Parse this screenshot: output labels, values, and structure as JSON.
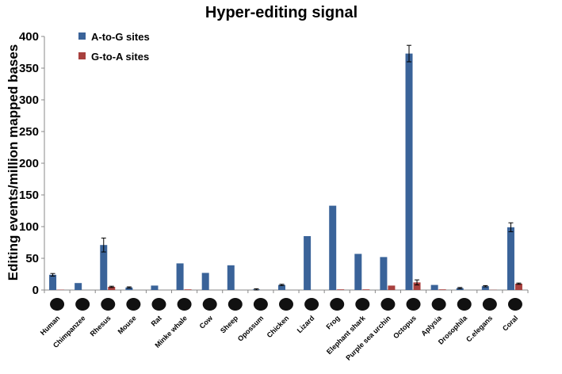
{
  "chart_data": {
    "type": "bar",
    "title": "Hyper-editing signal",
    "xlabel": "",
    "ylabel": "Editing events/million mapped bases",
    "ylim": [
      0,
      400
    ],
    "yticks": [
      0,
      50,
      100,
      150,
      200,
      250,
      300,
      350,
      400
    ],
    "grid": false,
    "legend_position": "top-left",
    "categories": [
      "Human",
      "Chimpanzee",
      "Rhesus",
      "Mouse",
      "Rat",
      "Minke whale",
      "Cow",
      "Sheep",
      "Opossum",
      "Chicken",
      "Lizard",
      "Frog",
      "Elephant shark",
      "Purple sea urchin",
      "Octopus",
      "Aplysia",
      "Drosophila",
      "C.elegans",
      "Coral"
    ],
    "series": [
      {
        "name": "A-to-G sites",
        "color": "#3a6399",
        "values": [
          24,
          11,
          71,
          4,
          7,
          42,
          27,
          39,
          1,
          8,
          85,
          133,
          57,
          52,
          373,
          8,
          3,
          6,
          99
        ],
        "errors": [
          2,
          0,
          11,
          1,
          0,
          0,
          0,
          0,
          1,
          1,
          0,
          0,
          0,
          0,
          13,
          0,
          1,
          1,
          7
        ]
      },
      {
        "name": "G-to-A sites",
        "color": "#a8403e",
        "values": [
          0.5,
          0,
          5,
          0,
          0,
          1,
          0,
          0,
          0,
          0,
          0,
          1,
          1,
          7,
          12,
          1,
          0,
          0.3,
          10
        ],
        "errors": [
          0,
          0,
          1,
          0,
          0,
          0,
          0,
          0,
          0,
          0,
          0,
          0,
          0,
          0,
          4,
          0,
          0,
          0,
          1
        ]
      }
    ],
    "category_icons": [
      "human-silhouette",
      "chimpanzee-silhouette",
      "rhesus-silhouette",
      "mouse-silhouette",
      "rat-silhouette",
      "whale-silhouette",
      "cow-silhouette",
      "sheep-silhouette",
      "opossum-silhouette",
      "chicken-silhouette",
      "lizard-silhouette",
      "frog-silhouette",
      "shark-silhouette",
      "urchin-silhouette",
      "octopus-silhouette",
      "aplysia-silhouette",
      "drosophila-silhouette",
      "worm-silhouette",
      "coral-silhouette"
    ]
  }
}
